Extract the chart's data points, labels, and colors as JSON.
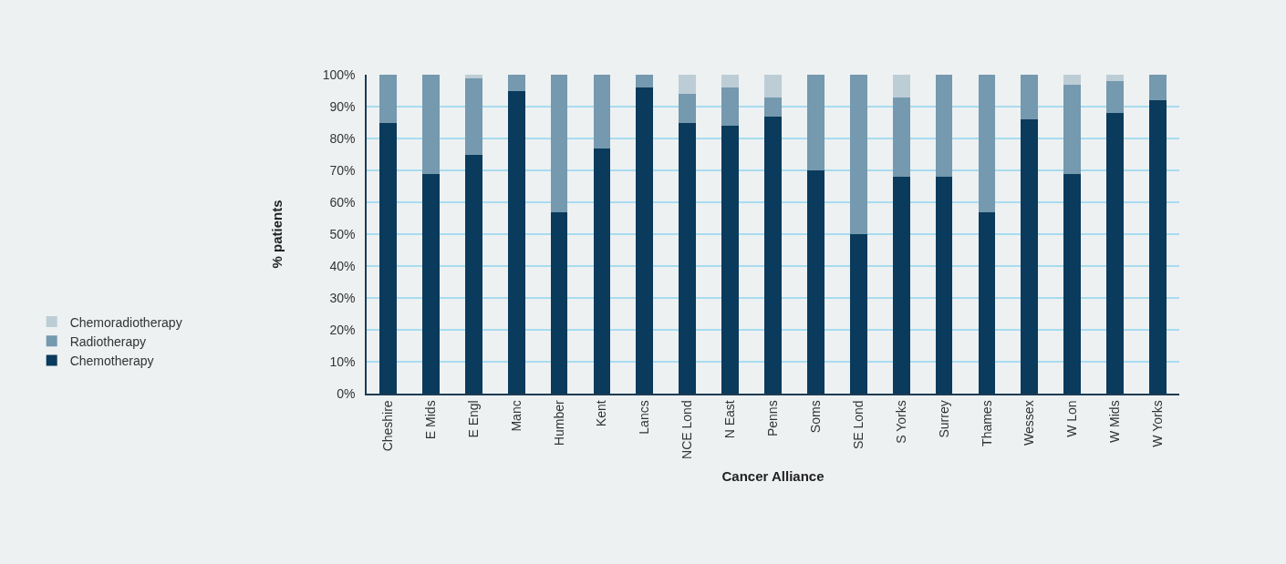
{
  "chart_data": {
    "type": "bar",
    "stacked": true,
    "xlabel": "Cancer Alliance",
    "ylabel": "% patients",
    "categories": [
      "Cheshire",
      "E Mids",
      "E Engl",
      "Manc",
      "Humber",
      "Kent",
      "Lancs",
      "NCE Lond",
      "N East",
      "Penns",
      "Soms",
      "SE Lond",
      "S Yorks",
      "Surrey",
      "Thames",
      "Wessex",
      "W Lon",
      "W Mids",
      "W Yorks"
    ],
    "series": [
      {
        "name": "Chemotherapy",
        "color": "#0a3a5c",
        "values": [
          85,
          69,
          75,
          95,
          57,
          77,
          96,
          85,
          84,
          87,
          70,
          50,
          68,
          68,
          57,
          86,
          69,
          88,
          92
        ]
      },
      {
        "name": "Radiotherapy",
        "color": "#7599ae",
        "values": [
          15,
          31,
          24,
          5,
          43,
          23,
          4,
          9,
          12,
          6,
          30,
          50,
          25,
          32,
          43,
          14,
          28,
          10,
          8
        ]
      },
      {
        "name": "Chemoradiotherapy",
        "color": "#bdcdd6",
        "values": [
          0,
          0,
          1,
          0,
          0,
          0,
          0,
          6,
          4,
          7,
          0,
          0,
          7,
          0,
          0,
          0,
          3,
          2,
          0
        ]
      }
    ],
    "ylim": [
      0,
      100
    ],
    "yticks": [
      {
        "value": 0,
        "label": "0%"
      },
      {
        "value": 10,
        "label": "10%"
      },
      {
        "value": 20,
        "label": "20%"
      },
      {
        "value": 30,
        "label": "30%"
      },
      {
        "value": 40,
        "label": "40%"
      },
      {
        "value": 50,
        "label": "50%"
      },
      {
        "value": 60,
        "label": "60%"
      },
      {
        "value": 70,
        "label": "70%"
      },
      {
        "value": 80,
        "label": "80%"
      },
      {
        "value": 90,
        "label": "90%"
      },
      {
        "value": 100,
        "label": "100%"
      }
    ],
    "grid": "y",
    "legend": "left"
  }
}
